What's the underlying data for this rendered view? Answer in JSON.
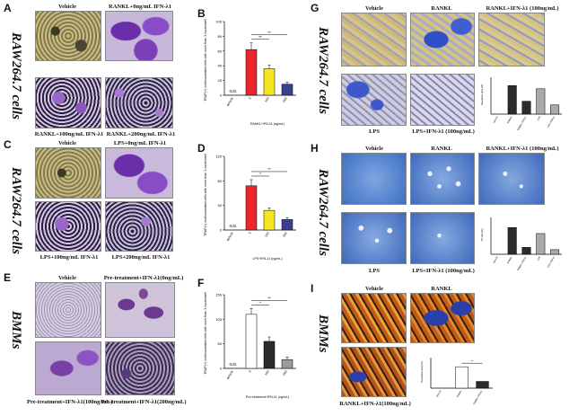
{
  "panels": {
    "A": {
      "letter": "A",
      "side": "RAW264.7 cells",
      "captions": [
        "Vehicle",
        "RANKL+0ng/mL IFN-λ1",
        "RANKL+100ng/mL IFN-λ1",
        "RANKL+200ng/mL IFN-λ1"
      ]
    },
    "C": {
      "letter": "C",
      "side": "RAW264.7 cells",
      "captions": [
        "Vehicle",
        "LPS+0ng/mL IFN-λ1",
        "LPS+100ng/mL IFN-λ1",
        "LPS+200ng/mL IFN-λ1"
      ]
    },
    "E": {
      "letter": "E",
      "side": "BMMs",
      "captions": [
        "Vehicle",
        "Pre-treatment+IFN-λ1(0ng/mL)",
        "Pre-treatment+IFN-λ1(100ng/mL)",
        "Pre-treatment+IFN-λ1(200ng/mL)"
      ]
    },
    "G": {
      "letter": "G",
      "side": "RAW264.7 cells",
      "captions": [
        "Vehicle",
        "RANKL",
        "RANKL+IFN-λ1 (100ng/mL)",
        "LPS",
        "LPS+IFN-λ1 (100ng/mL)"
      ]
    },
    "H": {
      "letter": "H",
      "side": "RAW264.7 cells",
      "captions": [
        "Vehicle",
        "RANKL",
        "RANKL+IFN-λ1 (100ng/mL)",
        "LPS",
        "LPS+IFN-λ1 (100ng/mL)"
      ]
    },
    "I": {
      "letter": "I",
      "side": "BMMs",
      "captions": [
        "Vehicle",
        "RANKL",
        "RANKL+IFN-λ1(100ng/mL)"
      ]
    }
  },
  "chart_data": [
    {
      "id": "B",
      "type": "bar",
      "ylabel": "TRAP(+) multinucleated cells with more than 3 nuclei/well",
      "xlabel": "RANKL+IFN-λ1 (ng/mL)",
      "categories": [
        "Vehicle",
        "0",
        "100",
        "200"
      ],
      "values": [
        0,
        62,
        36,
        15
      ],
      "errors": [
        0,
        9,
        5,
        3
      ],
      "ylim": [
        0,
        100
      ],
      "yticks": [
        "0",
        "20",
        "40",
        "60",
        "80",
        "100"
      ],
      "colors": [
        "#ffffff",
        "#e8262c",
        "#f5e61e",
        "#3a3f8f"
      ],
      "annotations": [
        "N.D.",
        "**",
        "**"
      ]
    },
    {
      "id": "D",
      "type": "bar",
      "ylabel": "TRAP(+) multinucleated cells with more than 3 nuclei/well",
      "xlabel": "LPS+IFN-λ1 (ng/mL)",
      "categories": [
        "Vehicle",
        "0",
        "100",
        "200"
      ],
      "values": [
        0,
        72,
        32,
        17
      ],
      "errors": [
        0,
        10,
        4,
        3
      ],
      "ylim": [
        0,
        120
      ],
      "yticks": [
        "0",
        "40",
        "80",
        "120"
      ],
      "colors": [
        "#ffffff",
        "#e8262c",
        "#f5e61e",
        "#3a3f8f"
      ],
      "annotations": [
        "N.D.",
        "*",
        "**"
      ]
    },
    {
      "id": "F",
      "type": "bar",
      "ylabel": "TRAP(+) multinucleated cells with more than 3 nuclei/well",
      "xlabel": "Pre-treatment+IFN-λ1 (ng/mL)",
      "categories": [
        "Vehicle",
        "0",
        "100",
        "200"
      ],
      "values": [
        0,
        110,
        55,
        18
      ],
      "errors": [
        0,
        12,
        9,
        5
      ],
      "ylim": [
        0,
        150
      ],
      "yticks": [
        "0",
        "50",
        "100",
        "150"
      ],
      "colors": [
        "#ffffff",
        "#ffffff",
        "#2b2b2b",
        "#9a9a9a"
      ],
      "annotations": [
        "N.D.",
        "*",
        "**"
      ]
    },
    {
      "id": "G",
      "type": "bar",
      "ylabel": "Resorption area (%)",
      "categories": [
        "Vehicle",
        "RANKL",
        "RANKL+IFN-λ1",
        "LPS",
        "LPS+IFN-λ1"
      ],
      "values": [
        0,
        62,
        28,
        55,
        20
      ],
      "ylim": [
        0,
        80
      ],
      "colors": [
        "#ffffff",
        "#2b2b2b",
        "#2b2b2b",
        "#aaaaaa",
        "#aaaaaa"
      ]
    },
    {
      "id": "H",
      "type": "bar",
      "ylabel": "Pit area (%)",
      "categories": [
        "Vehicle",
        "RANKL",
        "RANKL+IFN-λ1",
        "LPS",
        "LPS+IFN-λ1"
      ],
      "values": [
        0,
        58,
        15,
        45,
        10
      ],
      "ylim": [
        0,
        80
      ],
      "colors": [
        "#ffffff",
        "#2b2b2b",
        "#2b2b2b",
        "#aaaaaa",
        "#aaaaaa"
      ]
    },
    {
      "id": "I",
      "type": "bar",
      "ylabel": "Resorption area (%)",
      "categories": [
        "Vehicle",
        "RANKL",
        "RANKL+IFN-λ1"
      ],
      "values": [
        0,
        70,
        22
      ],
      "ylim": [
        0,
        100
      ],
      "colors": [
        "#ffffff",
        "#ffffff",
        "#2b2b2b"
      ],
      "annotations": [
        "**"
      ]
    }
  ],
  "colors": {
    "trap_purple": "#7b3fa8",
    "brightfield": "#b4a66b",
    "resorb_blue": "#3f57c9",
    "pit_blue": "#5f8ed3",
    "fluor_orange": "#d06a1e"
  }
}
